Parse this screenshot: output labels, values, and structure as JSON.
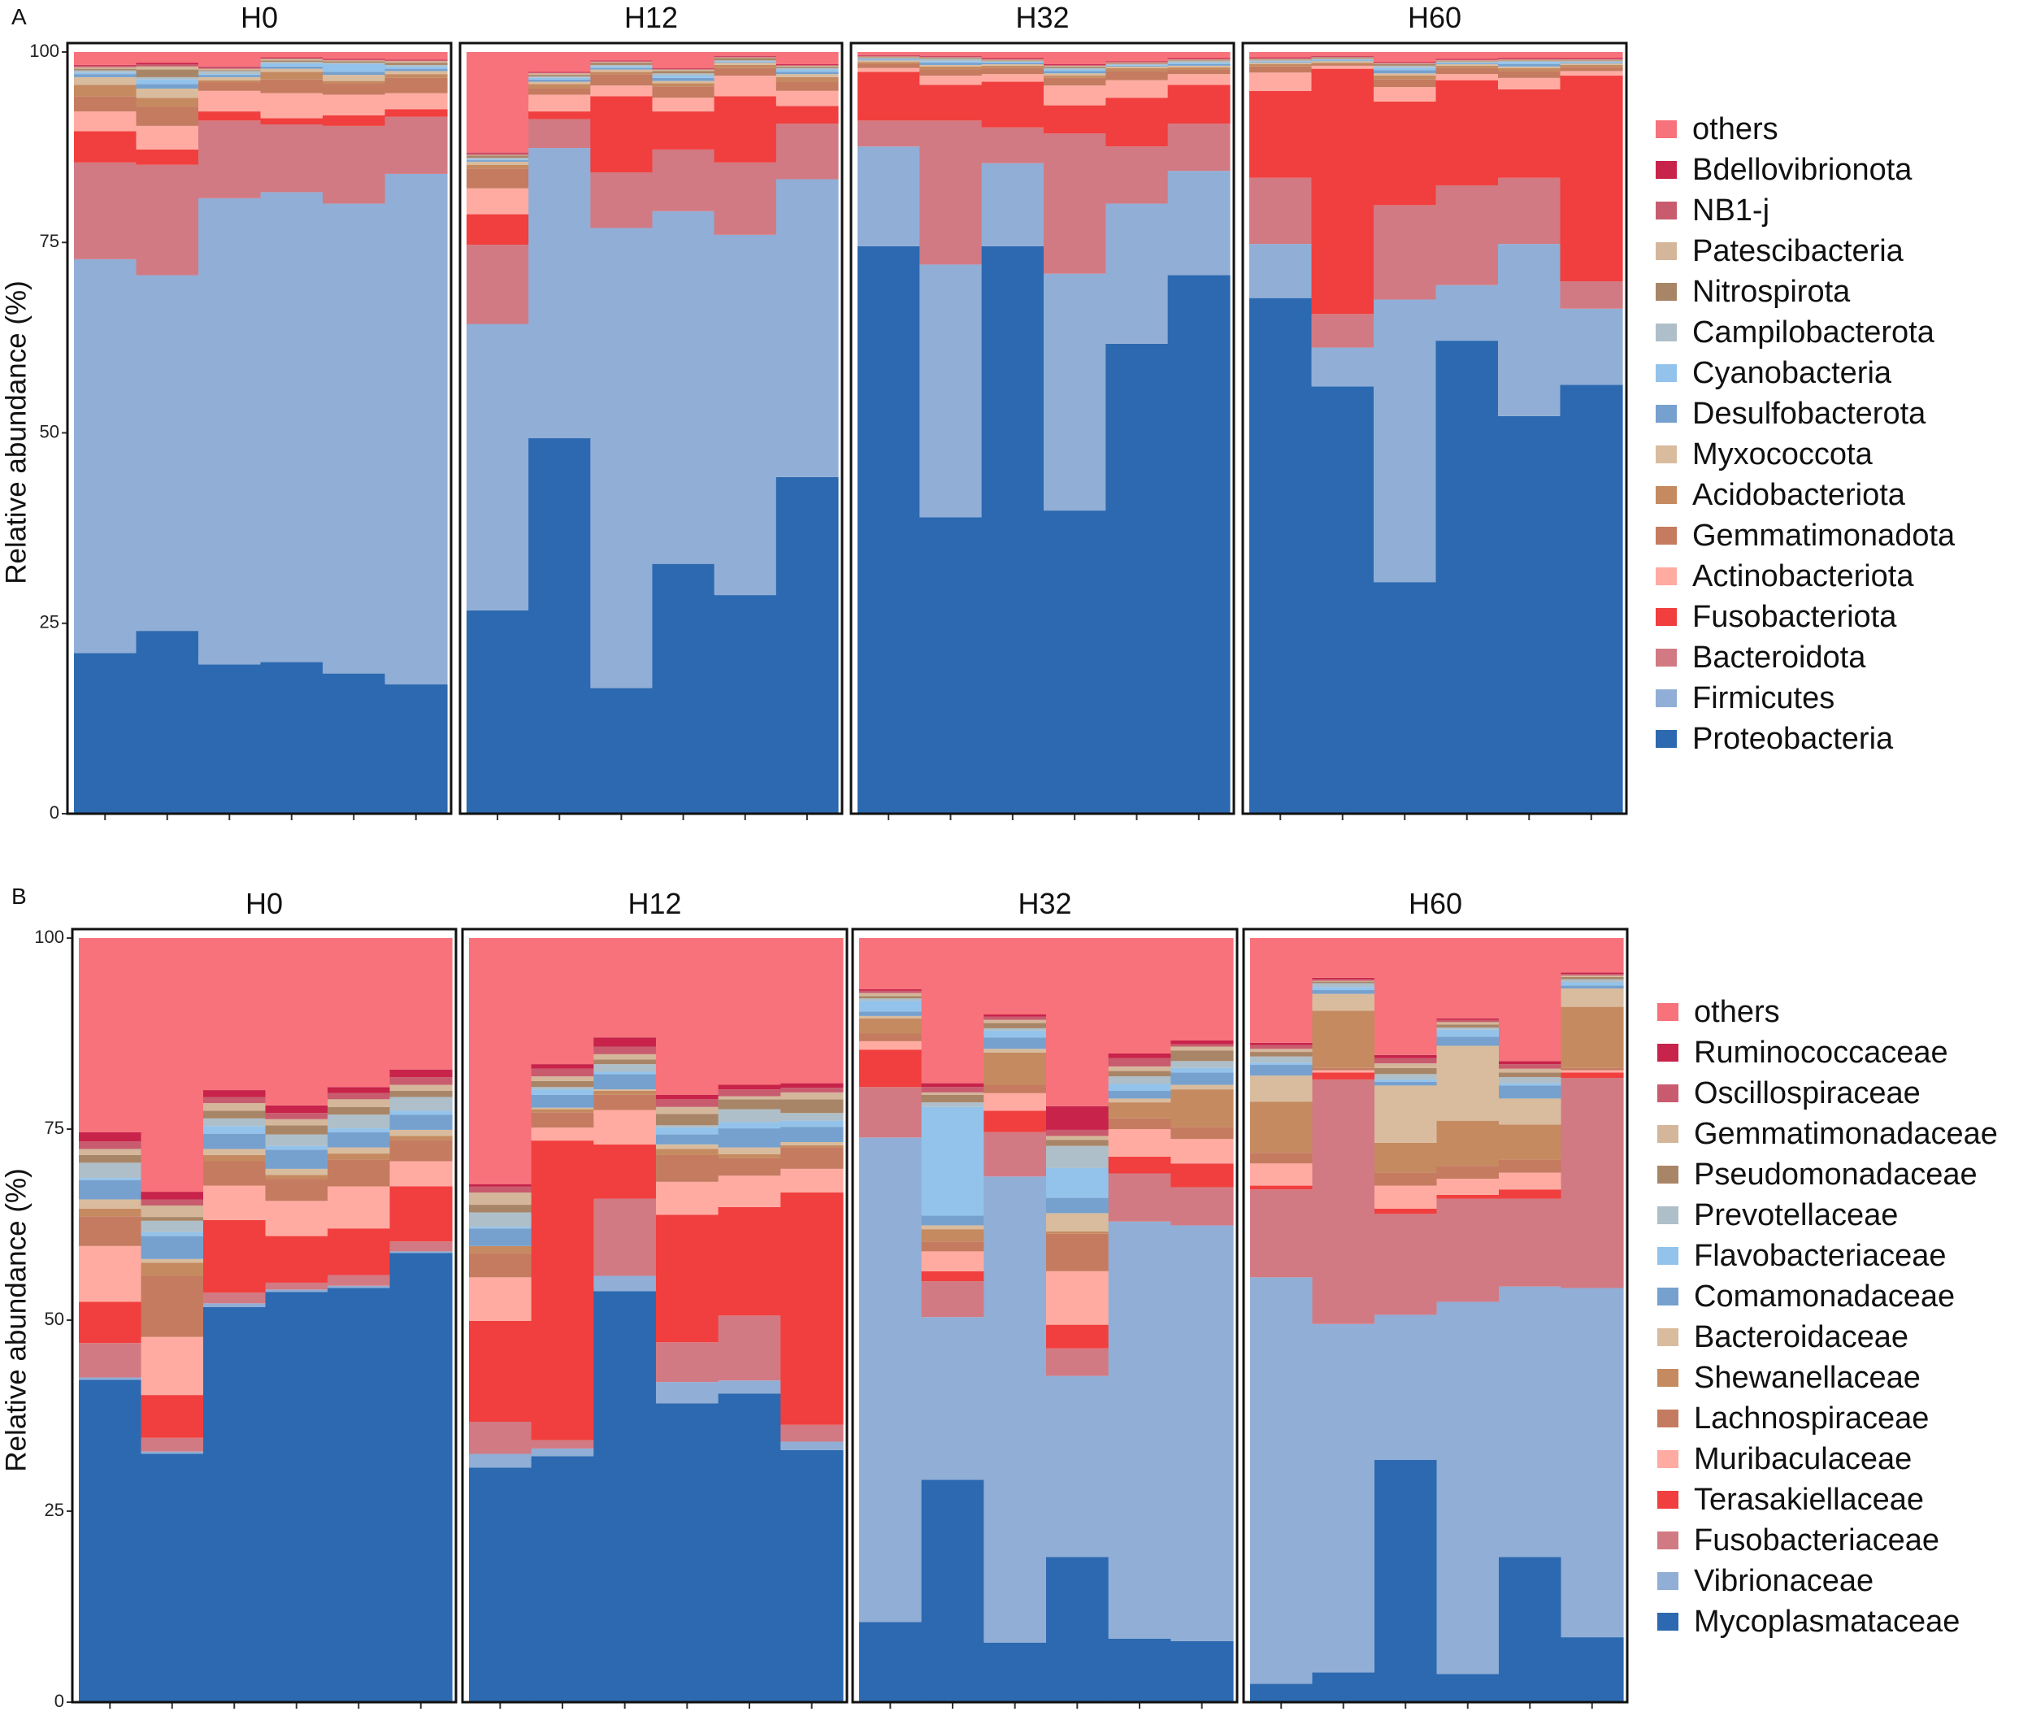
{
  "chart_data": [
    {
      "panel_label": "A",
      "type": "bar",
      "stacked": true,
      "ylabel": "Relative abundance (%)",
      "ylim": [
        0,
        100
      ],
      "yticks": [
        "0",
        "25",
        "50",
        "75",
        "100"
      ],
      "grid": false,
      "legend_position": "right",
      "stack_order": [
        "Proteobacteria",
        "Firmicutes",
        "Bacteroidota",
        "Fusobacteriota",
        "Actinobacteriota",
        "Gemmatimonadota",
        "Acidobacteriota",
        "Myxococcota",
        "Desulfobacterota",
        "Cyanobacteria",
        "Campilobacterota",
        "Nitrospirota",
        "Patescibacteria",
        "NB1-j",
        "Bdellovibrionota",
        "others"
      ],
      "colors": [
        "#2C69B0",
        "#91AED6",
        "#D27A83",
        "#F03F3E",
        "#FFABA2",
        "#C57B60",
        "#C58A60",
        "#D9BC9E",
        "#76A1CE",
        "#93C3EB",
        "#AEBFC9",
        "#A98567",
        "#D4B79B",
        "#C85C6E",
        "#C8234A",
        "#F7727B"
      ],
      "legend": [
        "others",
        "Bdellovibrionota",
        "NB1-j",
        "Patescibacteria",
        "Nitrospirota",
        "Campilobacterota",
        "Cyanobacteria",
        "Desulfobacterota",
        "Myxococcota",
        "Acidobacteriota",
        "Gemmatimonadota",
        "Actinobacteriota",
        "Fusobacteriota",
        "Bacteroidota",
        "Firmicutes",
        "Proteobacteria"
      ],
      "facets": [
        {
          "title": "H0",
          "bars": [
            [
              21.1,
              51.7,
              12.7,
              4.1,
              2.6,
              2.0,
              1.5,
              1.0,
              0.4,
              0.2,
              0.3,
              0.2,
              0.2,
              0.2,
              0.1,
              1.7
            ],
            [
              24.0,
              46.7,
              14.5,
              2.0,
              3.1,
              2.5,
              1.2,
              1.2,
              0.6,
              0.6,
              0.3,
              1.0,
              0.4,
              0.3,
              0.2,
              1.4
            ],
            [
              19.6,
              61.2,
              10.2,
              1.2,
              2.7,
              1.1,
              0.3,
              0.4,
              0.3,
              0.1,
              0.4,
              0.1,
              0.2,
              0.2,
              0.1,
              1.9
            ],
            [
              19.9,
              61.7,
              8.9,
              0.8,
              3.3,
              1.8,
              1.0,
              0.4,
              0.3,
              0.4,
              0.2,
              0.2,
              0.2,
              0.1,
              0.1,
              0.7
            ],
            [
              18.4,
              61.7,
              10.2,
              1.4,
              2.7,
              1.5,
              0.3,
              0.8,
              0.4,
              1.0,
              0.2,
              0.2,
              0.1,
              0.1,
              0.1,
              0.9
            ],
            [
              17.0,
              67.0,
              7.5,
              1.0,
              2.1,
              2.0,
              0.5,
              0.4,
              0.3,
              0.3,
              0.2,
              0.3,
              0.2,
              0.1,
              0.1,
              1.0
            ]
          ]
        },
        {
          "title": "H12",
          "bars": [
            [
              26.7,
              37.6,
              10.4,
              4.0,
              3.4,
              2.6,
              0.5,
              0.4,
              0.2,
              0.1,
              0.2,
              0.3,
              0.1,
              0.2,
              0.1,
              13.2
            ],
            [
              49.3,
              38.1,
              3.8,
              1.0,
              2.2,
              0.8,
              0.6,
              0.3,
              0.3,
              0.2,
              0.2,
              0.2,
              0.2,
              0.1,
              0.1,
              2.6
            ],
            [
              16.5,
              60.4,
              7.3,
              10.0,
              1.4,
              1.5,
              0.3,
              0.3,
              0.2,
              0.2,
              0.2,
              0.3,
              0.1,
              0.1,
              0.1,
              1.1
            ],
            [
              32.8,
              46.3,
              8.1,
              5.0,
              1.8,
              1.5,
              0.4,
              0.3,
              0.4,
              0.3,
              0.3,
              0.3,
              0.2,
              0.1,
              0.1,
              2.1
            ],
            [
              28.7,
              47.3,
              9.5,
              8.7,
              2.7,
              1.0,
              0.4,
              0.3,
              0.1,
              0.1,
              0.1,
              0.3,
              0.1,
              0.1,
              0.1,
              0.5
            ],
            [
              44.2,
              39.1,
              7.3,
              2.3,
              2.0,
              1.2,
              0.6,
              0.4,
              0.3,
              0.3,
              0.2,
              0.2,
              0.1,
              0.1,
              0.1,
              1.6
            ]
          ]
        },
        {
          "title": "H32",
          "bars": [
            [
              74.5,
              13.1,
              3.4,
              6.4,
              0.5,
              0.5,
              0.3,
              0.2,
              0.1,
              0.1,
              0.1,
              0.1,
              0.1,
              0.1,
              0.1,
              0.4
            ],
            [
              38.9,
              33.2,
              18.9,
              4.7,
              1.2,
              0.8,
              0.4,
              0.2,
              0.3,
              0.2,
              0.3,
              0.1,
              0.1,
              0.1,
              0.1,
              0.5
            ],
            [
              74.5,
              10.9,
              4.7,
              6.0,
              1.0,
              0.8,
              0.3,
              0.2,
              0.2,
              0.1,
              0.1,
              0.1,
              0.1,
              0.1,
              0.1,
              0.8
            ],
            [
              39.8,
              31.1,
              18.4,
              3.7,
              2.6,
              1.0,
              0.3,
              0.3,
              0.3,
              0.2,
              0.2,
              0.2,
              0.1,
              0.1,
              0.1,
              1.6
            ],
            [
              61.7,
              18.4,
              7.5,
              6.4,
              2.3,
              1.2,
              0.4,
              0.2,
              0.1,
              0.1,
              0.1,
              0.1,
              0.1,
              0.1,
              0.1,
              1.2
            ],
            [
              70.7,
              13.7,
              6.2,
              5.1,
              1.4,
              0.6,
              0.3,
              0.2,
              0.2,
              0.2,
              0.2,
              0.1,
              0.1,
              0.1,
              0.1,
              0.8
            ]
          ]
        },
        {
          "title": "H60",
          "bars": [
            [
              67.7,
              7.1,
              8.7,
              11.4,
              2.4,
              0.8,
              0.3,
              0.2,
              0.1,
              0.1,
              0.1,
              0.1,
              0.1,
              0.1,
              0.1,
              0.7
            ],
            [
              56.1,
              5.1,
              4.4,
              32.2,
              0.4,
              0.2,
              0.2,
              0.2,
              0.1,
              0.1,
              0.1,
              0.1,
              0.1,
              0.1,
              0.1,
              0.5
            ],
            [
              30.4,
              37.1,
              12.4,
              13.6,
              1.9,
              1.0,
              0.5,
              0.3,
              0.4,
              0.3,
              0.3,
              0.2,
              0.1,
              0.1,
              0.1,
              1.3
            ],
            [
              62.1,
              7.3,
              13.1,
              13.8,
              0.8,
              0.8,
              0.3,
              0.2,
              0.1,
              0.1,
              0.1,
              0.1,
              0.1,
              0.1,
              0.1,
              0.9
            ],
            [
              52.2,
              22.6,
              8.7,
              11.6,
              1.5,
              0.9,
              0.4,
              0.2,
              0.3,
              0.3,
              0.1,
              0.1,
              0.1,
              0.1,
              0.1,
              0.8
            ],
            [
              56.3,
              10.0,
              3.6,
              27.0,
              0.6,
              0.5,
              0.3,
              0.2,
              0.1,
              0.1,
              0.1,
              0.1,
              0.1,
              0.1,
              0.1,
              0.8
            ]
          ]
        }
      ]
    },
    {
      "panel_label": "B",
      "type": "bar",
      "stacked": true,
      "ylabel": "Relative abundance (%)",
      "ylim": [
        0,
        100
      ],
      "yticks": [
        "0",
        "25",
        "50",
        "75",
        "100"
      ],
      "grid": false,
      "legend_position": "right",
      "stack_order": [
        "Mycoplasmataceae",
        "Vibrionaceae",
        "Fusobacteriaceae",
        "Terasakiellaceae",
        "Muribaculaceae",
        "Lachnospiraceae",
        "Shewanellaceae",
        "Bacteroidaceae",
        "Comamonadaceae",
        "Flavobacteriaceae",
        "Prevotellaceae",
        "Pseudomonadaceae",
        "Gemmatimonadaceae",
        "Oscillospiraceae",
        "Ruminococcaceae",
        "others"
      ],
      "colors": [
        "#2C69B0",
        "#91AED6",
        "#D27A83",
        "#F03F3E",
        "#FFABA2",
        "#C57B60",
        "#C58A60",
        "#D9BC9E",
        "#76A1CE",
        "#93C3EB",
        "#AEBFC9",
        "#A98567",
        "#D4B79B",
        "#C85C6E",
        "#C8234A",
        "#F7727B"
      ],
      "legend": [
        "others",
        "Ruminococcaceae",
        "Oscillospiraceae",
        "Gemmatimonadaceae",
        "Pseudomonadaceae",
        "Prevotellaceae",
        "Flavobacteriaceae",
        "Comamonadaceae",
        "Bacteroidaceae",
        "Shewanellaceae",
        "Lachnospiraceae",
        "Muribaculaceae",
        "Terasakiellaceae",
        "Fusobacteriaceae",
        "Vibrionaceae",
        "Mycoplasmataceae"
      ],
      "facets": [
        {
          "title": "H0",
          "bars": [
            [
              42.2,
              0.3,
              4.5,
              5.4,
              7.3,
              3.9,
              1.0,
              1.2,
              2.5,
              0.3,
              2.0,
              1.0,
              0.8,
              1.0,
              1.2,
              25.4
            ],
            [
              32.5,
              0.3,
              1.8,
              5.6,
              7.6,
              8.0,
              1.7,
              0.5,
              3.0,
              0.5,
              1.5,
              0.5,
              1.5,
              0.8,
              1.0,
              33.2
            ],
            [
              51.7,
              0.5,
              1.4,
              9.5,
              4.5,
              3.2,
              0.8,
              0.8,
              2.0,
              1.0,
              1.0,
              1.0,
              1.0,
              0.8,
              0.9,
              19.9
            ],
            [
              53.7,
              0.3,
              0.9,
              6.1,
              4.6,
              2.9,
              0.5,
              0.8,
              2.5,
              0.5,
              1.5,
              1.2,
              0.8,
              0.8,
              1.0,
              21.9
            ],
            [
              54.2,
              0.3,
              1.4,
              6.1,
              5.5,
              3.5,
              0.8,
              0.8,
              2.0,
              0.5,
              1.8,
              1.0,
              1.0,
              0.8,
              0.8,
              19.5
            ],
            [
              58.8,
              0.2,
              1.3,
              7.2,
              3.3,
              2.8,
              0.5,
              0.8,
              2.0,
              0.5,
              1.8,
              0.8,
              0.8,
              1.0,
              1.0,
              17.2
            ]
          ]
        },
        {
          "title": "H12",
          "bars": [
            [
              30.7,
              1.8,
              4.2,
              13.2,
              5.7,
              3.2,
              0.9,
              0.0,
              2.3,
              0.2,
              1.9,
              1.0,
              1.6,
              0.8,
              0.3,
              32.2
            ],
            [
              32.2,
              1.0,
              1.1,
              39.2,
              1.7,
              2.0,
              0.4,
              0.2,
              1.7,
              0.7,
              0.3,
              0.8,
              0.6,
              1.0,
              0.6,
              16.5
            ],
            [
              53.8,
              2.0,
              10.1,
              7.1,
              4.5,
              2.0,
              0.5,
              0.2,
              2.0,
              0.3,
              1.0,
              0.6,
              0.7,
              1.0,
              1.2,
              13.0
            ],
            [
              39.1,
              2.8,
              5.2,
              16.7,
              4.3,
              3.5,
              0.8,
              0.6,
              1.3,
              0.9,
              0.3,
              1.5,
              0.9,
              1.0,
              0.6,
              20.5
            ],
            [
              40.4,
              1.7,
              8.5,
              14.2,
              4.1,
              2.3,
              0.5,
              0.9,
              2.5,
              0.8,
              1.7,
              1.3,
              0.4,
              0.9,
              0.6,
              19.2
            ],
            [
              33.0,
              1.1,
              2.2,
              30.4,
              3.1,
              2.8,
              0.3,
              0.4,
              2.0,
              0.8,
              1.0,
              1.8,
              0.9,
              0.6,
              0.6,
              19.0
            ]
          ]
        },
        {
          "title": "H32",
          "bars": [
            [
              10.5,
              63.4,
              6.6,
              4.9,
              1.1,
              1.0,
              2.0,
              0.3,
              0.6,
              1.4,
              0.3,
              0.3,
              0.4,
              0.3,
              0.2,
              6.7
            ],
            [
              29.1,
              21.3,
              4.7,
              1.3,
              2.6,
              1.3,
              1.6,
              0.5,
              1.3,
              14.2,
              0.6,
              1.0,
              0.3,
              0.7,
              0.5,
              19.0
            ],
            [
              7.8,
              61.0,
              5.8,
              2.8,
              2.3,
              1.1,
              4.2,
              0.5,
              1.5,
              0.9,
              0.3,
              0.7,
              0.4,
              0.4,
              0.3,
              10.0
            ],
            [
              19.0,
              23.7,
              3.6,
              3.1,
              7.0,
              4.9,
              0.3,
              2.4,
              2.0,
              3.9,
              2.9,
              0.8,
              0.5,
              0.8,
              3.1,
              22.0
            ],
            [
              8.3,
              54.6,
              6.3,
              2.2,
              3.6,
              1.4,
              2.1,
              0.5,
              1.0,
              0.9,
              1.0,
              0.7,
              0.6,
              1.1,
              0.6,
              15.1
            ],
            [
              8.0,
              54.4,
              5.0,
              3.1,
              3.2,
              1.6,
              4.9,
              0.6,
              1.6,
              0.6,
              0.9,
              1.4,
              0.5,
              0.3,
              0.5,
              13.4
            ]
          ]
        },
        {
          "title": "H60",
          "bars": [
            [
              2.4,
              53.2,
              11.5,
              0.5,
              2.9,
              1.4,
              6.7,
              3.4,
              1.4,
              0.3,
              0.8,
              0.6,
              0.4,
              0.5,
              0.3,
              13.7
            ],
            [
              3.9,
              45.6,
              32.0,
              0.9,
              0.3,
              0.3,
              7.5,
              2.2,
              0.5,
              0.4,
              0.5,
              0.2,
              0.1,
              0.2,
              0.2,
              5.2
            ],
            [
              31.7,
              19.0,
              13.2,
              0.7,
              3.0,
              1.7,
              3.9,
              7.5,
              0.5,
              0.3,
              0.7,
              0.8,
              0.6,
              0.7,
              0.4,
              15.3
            ],
            [
              3.7,
              48.7,
              13.5,
              0.5,
              2.1,
              1.7,
              5.9,
              9.8,
              1.2,
              0.9,
              0.3,
              0.4,
              0.3,
              0.3,
              0.2,
              10.5
            ],
            [
              19.0,
              35.4,
              11.5,
              1.2,
              2.2,
              1.7,
              4.6,
              3.4,
              1.7,
              0.3,
              0.8,
              0.6,
              0.5,
              0.6,
              0.4,
              16.1
            ],
            [
              8.5,
              45.7,
              27.5,
              0.7,
              0.3,
              0.3,
              8.0,
              2.4,
              0.4,
              0.4,
              0.4,
              0.3,
              0.2,
              0.2,
              0.2,
              4.5
            ]
          ]
        }
      ]
    }
  ]
}
